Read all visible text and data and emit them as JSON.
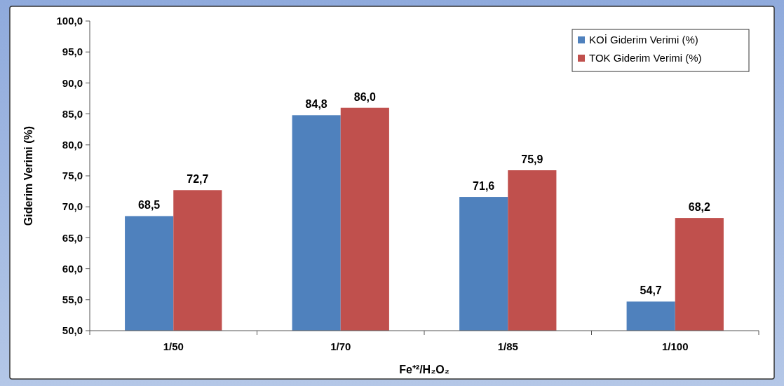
{
  "chart_data": {
    "type": "bar",
    "xlabel": "Fe⁺²/H₂O₂",
    "ylabel": "Giderim Verimi (%)",
    "categories": [
      "1/50",
      "1/70",
      "1/85",
      "1/100"
    ],
    "series": [
      {
        "name": "KOİ Giderim Verimi (%)",
        "color": "#4f81bd",
        "values": [
          68.5,
          84.8,
          71.6,
          54.7
        ],
        "value_labels": [
          "68,5",
          "84,8",
          "71,6",
          "54,7"
        ]
      },
      {
        "name": "TOK Giderim Verimi (%)",
        "color": "#c0504d",
        "values": [
          72.7,
          86.0,
          75.9,
          68.2
        ],
        "value_labels": [
          "72,7",
          "86,0",
          "75,9",
          "68,2"
        ]
      }
    ],
    "ylim": [
      50,
      100
    ],
    "yticks": [
      {
        "value": 50,
        "label": "50,0"
      },
      {
        "value": 55,
        "label": "55,0"
      },
      {
        "value": 60,
        "label": "60,0"
      },
      {
        "value": 65,
        "label": "65,0"
      },
      {
        "value": 70,
        "label": "70,0"
      },
      {
        "value": 75,
        "label": "75,0"
      },
      {
        "value": 80,
        "label": "80,0"
      },
      {
        "value": 85,
        "label": "85,0"
      },
      {
        "value": 90,
        "label": "90,0"
      },
      {
        "value": 95,
        "label": "95,0"
      },
      {
        "value": 100,
        "label": "100,0"
      }
    ],
    "grid": false,
    "legend": "top right"
  }
}
